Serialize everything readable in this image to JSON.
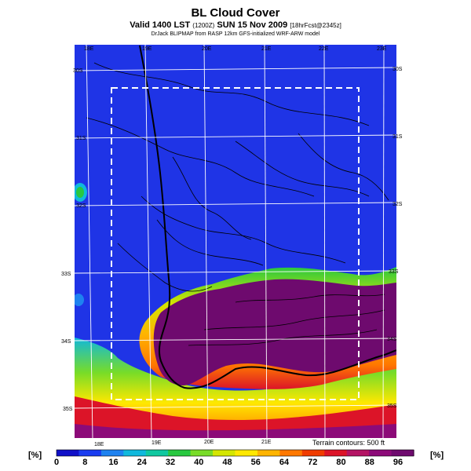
{
  "header": {
    "title": "BL Cloud Cover",
    "valid_main": "Valid 1400 LST",
    "valid_small": "(1200Z)",
    "valid_date": "SUN 15 Nov 2009",
    "forecast_small": "[18hrFcst@2345z]",
    "subtitle": "DrJack BLIPMAP from RASP 12km GFS-initialized WRF-ARW model"
  },
  "map": {
    "lon_labels_top": [
      "18E",
      "19E",
      "20E",
      "21E",
      "22E",
      "23E"
    ],
    "lon_labels_bottom": [
      "18E",
      "19E",
      "20E",
      "21E"
    ],
    "lat_labels_left": [
      "30S",
      "31S",
      "32S",
      "33S",
      "34S",
      "35S"
    ],
    "lat_labels_right": [
      "30S",
      "31S",
      "32S",
      "33S",
      "34S",
      "35S"
    ],
    "terrain_note": "Terrain contours: 500 ft",
    "colors": {
      "clear": "#1f34e6",
      "overcast": "#6e0a6e",
      "grid": "#ffffff",
      "domain_box": "#ffffff"
    }
  },
  "colorbar": {
    "unit_left": "[%]",
    "unit_right": "[%]",
    "ticks": [
      "0",
      "8",
      "16",
      "24",
      "32",
      "40",
      "48",
      "56",
      "64",
      "72",
      "80",
      "88",
      "96"
    ],
    "colors": [
      "#1010c8",
      "#1a3cf0",
      "#1e82f0",
      "#10b8dc",
      "#10c8a0",
      "#28c840",
      "#78dc28",
      "#d4e600",
      "#ffe800",
      "#ffb400",
      "#ff7800",
      "#f03c00",
      "#dc1428",
      "#b41464",
      "#8c0a78",
      "#6e0a6e"
    ]
  }
}
